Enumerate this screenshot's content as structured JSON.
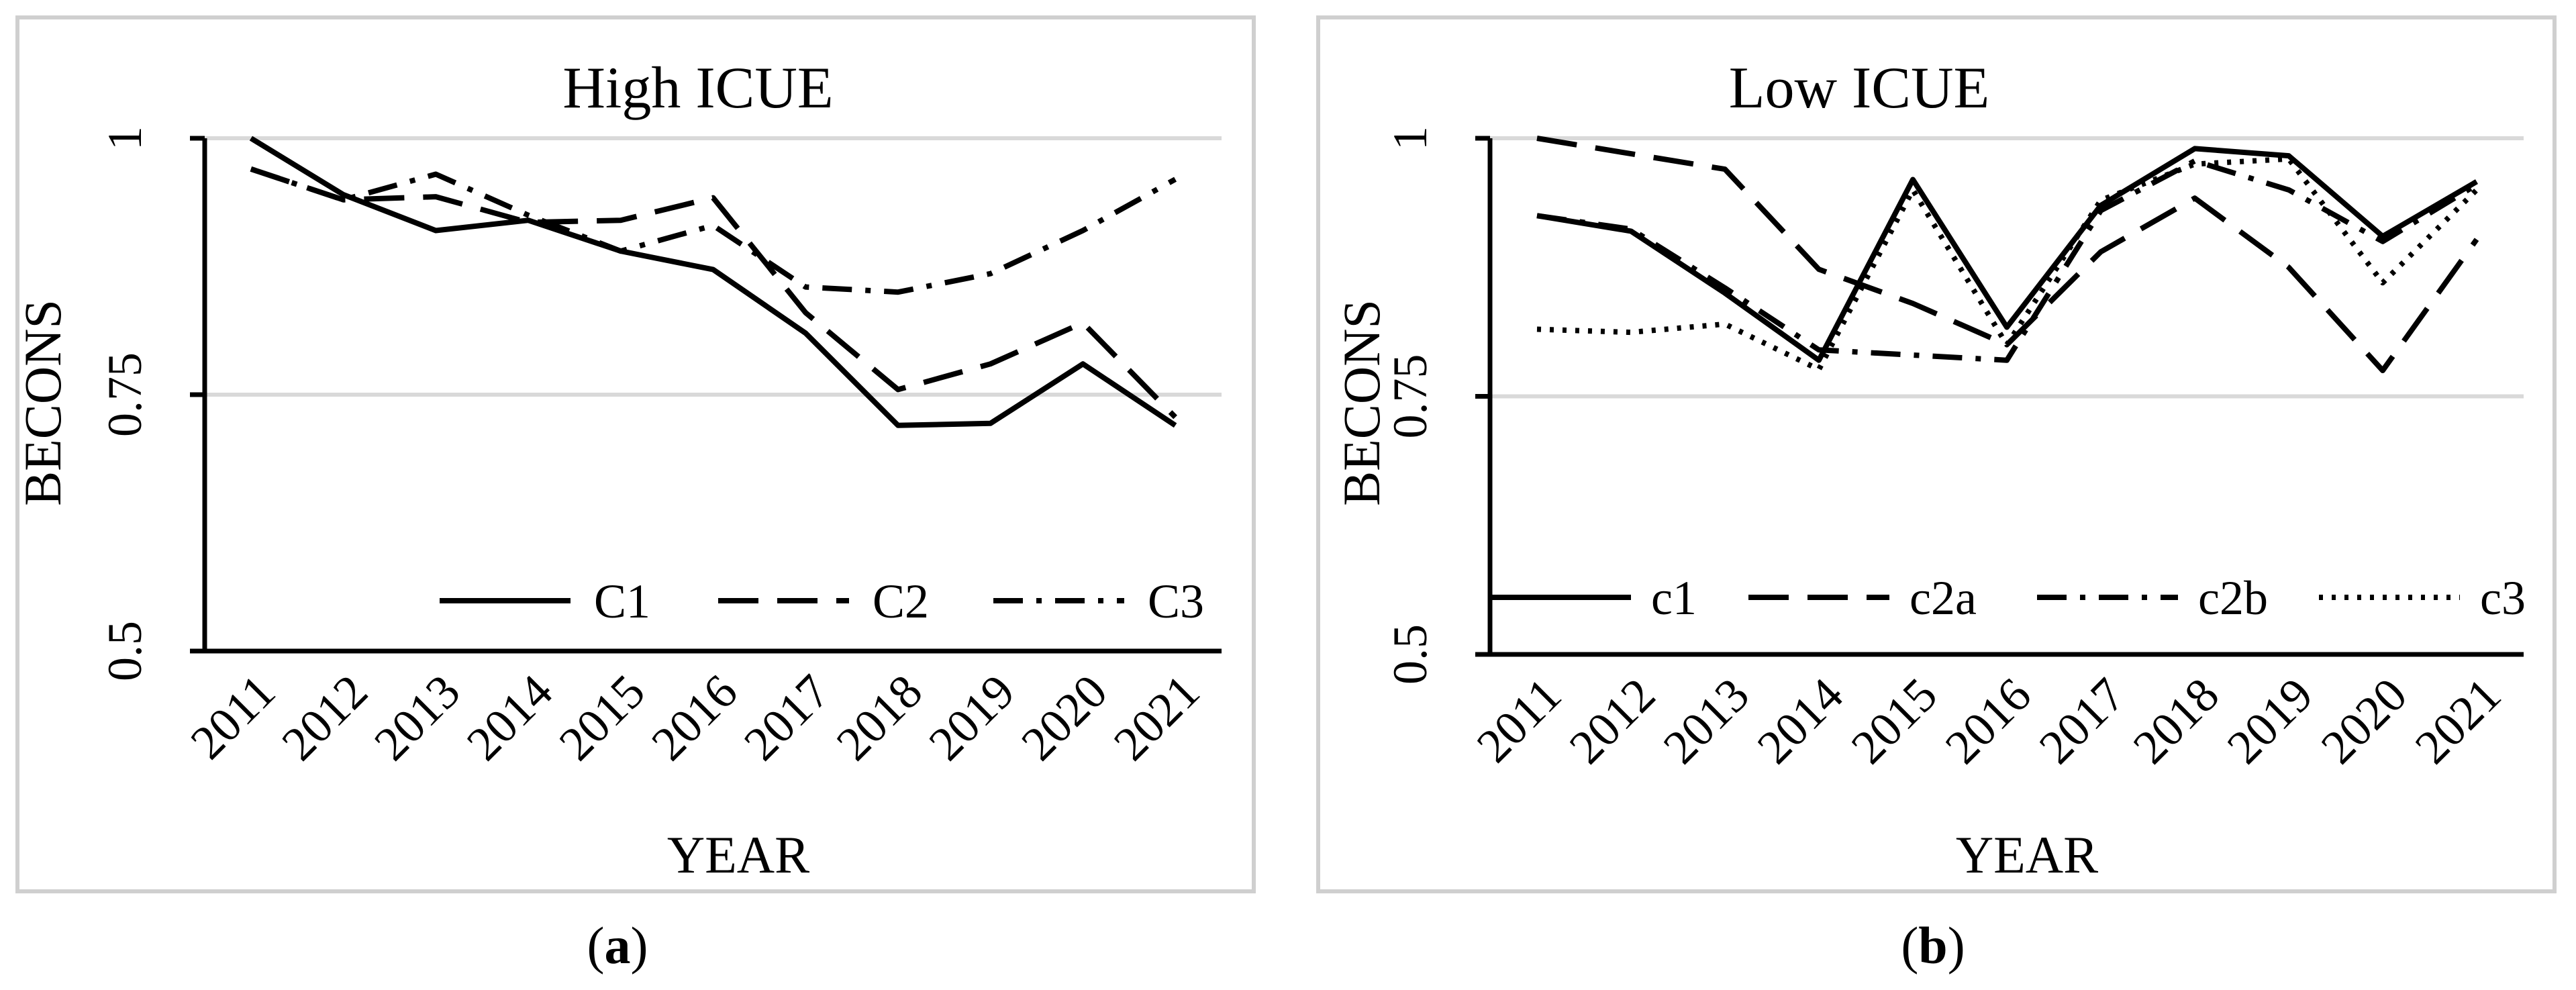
{
  "chart_data": [
    {
      "type": "line",
      "title": "High ICUE",
      "xlabel": "YEAR",
      "ylabel": "BECONS",
      "caption": {
        "open": "(",
        "letter": "a",
        "close": ")"
      },
      "categories": [
        "2011",
        "2012",
        "2013",
        "2014",
        "2015",
        "2016",
        "2017",
        "2018",
        "2019",
        "2020",
        "2021"
      ],
      "ylim": [
        0.5,
        1.0
      ],
      "yticks": [
        0.5,
        0.75,
        1.0
      ],
      "ytick_labels": [
        "0.5",
        "0.75",
        "1"
      ],
      "grid": true,
      "legend_position": "bottom-right",
      "series": [
        {
          "name": "C1",
          "style": "solid",
          "values": [
            1.0,
            0.945,
            0.91,
            0.92,
            0.89,
            0.872,
            0.81,
            0.72,
            0.722,
            0.78,
            0.72
          ]
        },
        {
          "name": "C2",
          "style": "dashed",
          "values": [
            0.97,
            0.94,
            0.943,
            0.918,
            0.92,
            0.942,
            0.83,
            0.755,
            0.78,
            0.82,
            0.728
          ]
        },
        {
          "name": "C3",
          "style": "dashdot",
          "values": [
            0.97,
            0.94,
            0.965,
            0.925,
            0.89,
            0.915,
            0.855,
            0.85,
            0.868,
            0.91,
            0.96
          ]
        }
      ]
    },
    {
      "type": "line",
      "title": "Low ICUE",
      "xlabel": "YEAR",
      "ylabel": "BECONS",
      "caption": {
        "open": "(",
        "letter": "b",
        "close": ")"
      },
      "categories": [
        "2011",
        "2012",
        "2013",
        "2014",
        "2015",
        "2016",
        "2017",
        "2018",
        "2019",
        "2020",
        "2021"
      ],
      "ylim": [
        0.5,
        1.0
      ],
      "yticks": [
        0.5,
        0.75,
        1.0
      ],
      "ytick_labels": [
        "0.5",
        "0.75",
        "1"
      ],
      "grid": true,
      "legend_position": "bottom",
      "series": [
        {
          "name": "c1",
          "style": "solid",
          "values": [
            0.925,
            0.91,
            0.85,
            0.785,
            0.96,
            0.817,
            0.935,
            0.99,
            0.983,
            0.905,
            0.958
          ]
        },
        {
          "name": "c2a",
          "style": "dashed",
          "values": [
            1.0,
            0.985,
            0.97,
            0.873,
            0.84,
            0.8,
            0.89,
            0.942,
            0.875,
            0.775,
            0.902
          ]
        },
        {
          "name": "c2b",
          "style": "dashdot",
          "values": [
            0.925,
            0.912,
            0.855,
            0.795,
            0.79,
            0.785,
            0.93,
            0.978,
            0.95,
            0.9,
            0.955
          ]
        },
        {
          "name": "c3",
          "style": "dotted",
          "values": [
            0.815,
            0.812,
            0.82,
            0.776,
            0.95,
            0.8,
            0.94,
            0.975,
            0.98,
            0.86,
            0.95
          ]
        }
      ]
    }
  ]
}
